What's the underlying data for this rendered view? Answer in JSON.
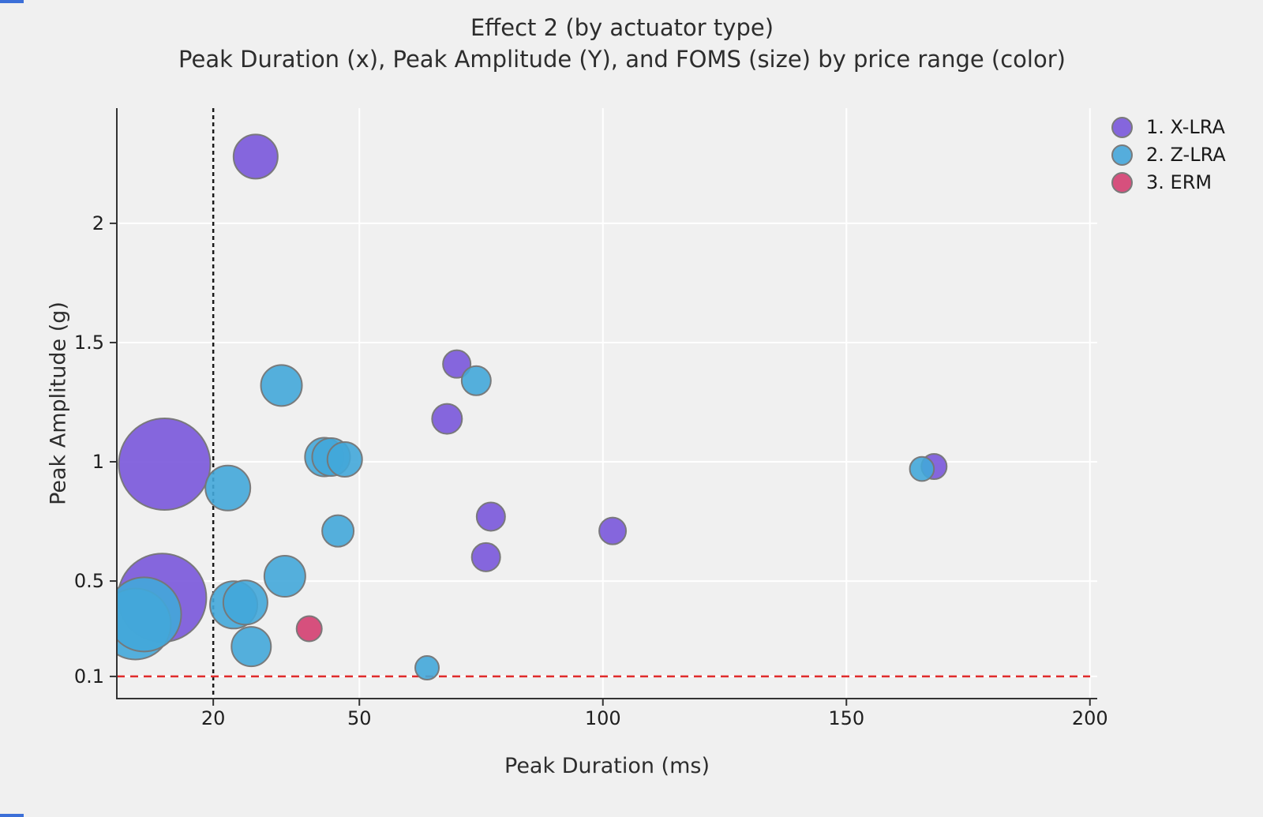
{
  "title": "Effect 2 (by actuator type)",
  "subtitle": "Peak Duration (x), Peak Amplitude (Y), and FOMS (size) by price range (color)",
  "legend": {
    "position": "top-right",
    "items": [
      {
        "label": "1. X-LRA",
        "swatch_color": "#8566DD"
      },
      {
        "label": "2. Z-LRA",
        "swatch_color": "#55ADDC"
      },
      {
        "label": "3. ERM",
        "swatch_color": "#D6507D"
      }
    ]
  },
  "colors": {
    "background": "#f0f0f0",
    "gridline": "#ffffff",
    "axis": "#333333",
    "tick_label": "#1f1f1f",
    "bubble_stroke": "#767676",
    "x_lra": "#7957DA",
    "z_lra": "#43A7D9",
    "erm": "#D33E70",
    "vline": "#1a1a1a",
    "hline": "#E02B2B"
  },
  "chart_data": {
    "type": "scatter",
    "subtype": "bubble",
    "title": "Effect 2 (by actuator type)",
    "subtitle": "Peak Duration (x), Peak Amplitude (Y), and FOMS (size) by price range (color)",
    "xlabel": "Peak Duration (ms)",
    "ylabel": "Peak Amplitude (g)",
    "size_encoding": "FOMS (bubble size); r given as rendered marker radius in px",
    "grid": true,
    "x_ticks": [
      20,
      50,
      100,
      150,
      200
    ],
    "y_ticks": [
      0.1,
      0.5,
      1,
      1.5,
      2
    ],
    "x_range": [
      0.2,
      201.5
    ],
    "y_range": [
      0.007,
      2.483
    ],
    "ref_lines": [
      {
        "type": "vline",
        "x": 20,
        "style": "dashed",
        "color": "#1a1a1a"
      },
      {
        "type": "hline",
        "y": 0.1,
        "style": "dashed",
        "color": "#E02B2B"
      }
    ],
    "series": [
      {
        "id": "x-lra",
        "name": "1. X-LRA",
        "color": "#7957DA",
        "points": [
          {
            "x": 28.7,
            "y": 2.28,
            "r": 28
          },
          {
            "x": 70.0,
            "y": 1.41,
            "r": 17.5
          },
          {
            "x": 68.0,
            "y": 1.18,
            "r": 19
          },
          {
            "x": 10.0,
            "y": 0.99,
            "r": 58
          },
          {
            "x": 77.0,
            "y": 0.77,
            "r": 18
          },
          {
            "x": 102.0,
            "y": 0.71,
            "r": 17
          },
          {
            "x": 76.0,
            "y": 0.6,
            "r": 18
          },
          {
            "x": 9.5,
            "y": 0.43,
            "r": 56
          },
          {
            "x": 168.0,
            "y": 0.98,
            "r": 16
          }
        ]
      },
      {
        "id": "z-lra",
        "name": "2. Z-LRA",
        "color": "#43A7D9",
        "points": [
          {
            "x": 4.0,
            "y": 0.32,
            "r": 45
          },
          {
            "x": 5.8,
            "y": 0.36,
            "r": 47
          },
          {
            "x": 34.0,
            "y": 1.32,
            "r": 26
          },
          {
            "x": 74.0,
            "y": 1.34,
            "r": 18.5
          },
          {
            "x": 42.8,
            "y": 1.02,
            "r": 24.5
          },
          {
            "x": 44.2,
            "y": 1.02,
            "r": 24
          },
          {
            "x": 47.0,
            "y": 1.01,
            "r": 22
          },
          {
            "x": 23.0,
            "y": 0.89,
            "r": 28.5
          },
          {
            "x": 45.6,
            "y": 0.71,
            "r": 20
          },
          {
            "x": 34.7,
            "y": 0.52,
            "r": 26
          },
          {
            "x": 24.2,
            "y": 0.4,
            "r": 30
          },
          {
            "x": 26.6,
            "y": 0.41,
            "r": 28
          },
          {
            "x": 27.8,
            "y": 0.225,
            "r": 25
          },
          {
            "x": 63.9,
            "y": 0.136,
            "r": 15
          },
          {
            "x": 165.5,
            "y": 0.97,
            "r": 15.3
          }
        ]
      },
      {
        "id": "erm",
        "name": "3. ERM",
        "color": "#D33E70",
        "points": [
          {
            "x": 39.7,
            "y": 0.3,
            "r": 16
          }
        ]
      }
    ]
  }
}
